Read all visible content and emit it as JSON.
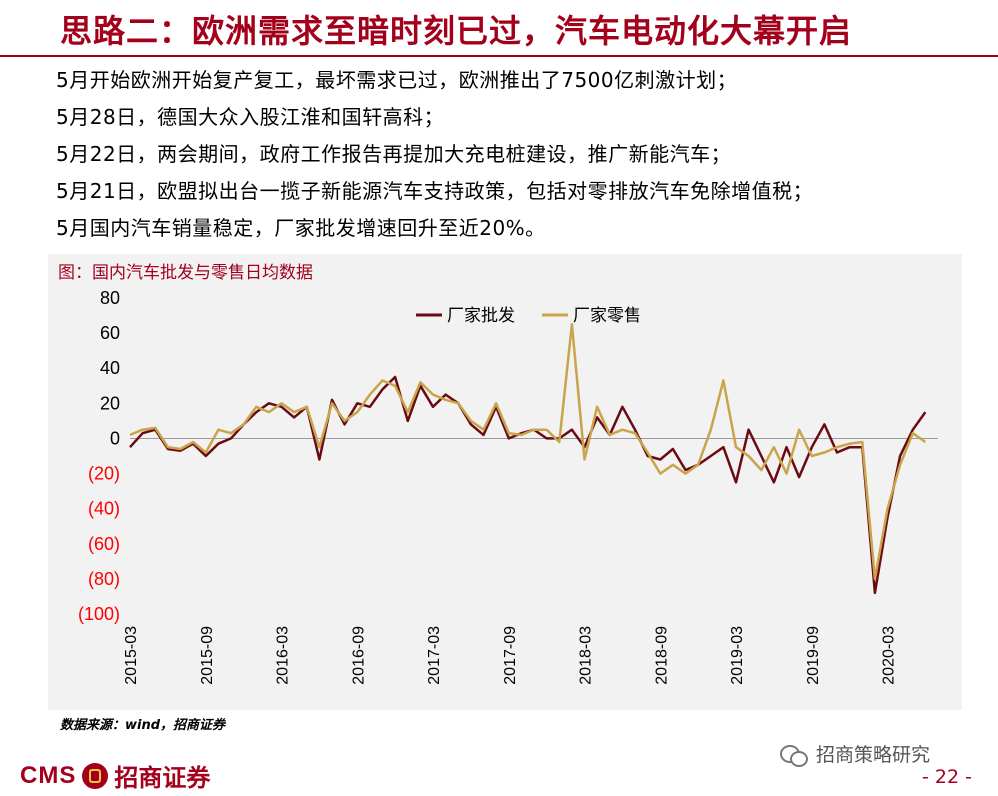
{
  "page": {
    "title": "思路二：欧洲需求至暗时刻已过，汽车电动化大幕开启",
    "bullets": [
      "5月开始欧洲开始复产复工，最坏需求已过，欧洲推出了7500亿刺激计划；",
      "5月28日，德国大众入股江淮和国轩高科；",
      "5月22日，两会期间，政府工作报告再提加大充电桩建设，推广新能汽车；",
      "5月21日，欧盟拟出台一揽子新能源汽车支持政策，包括对零排放汽车免除增值税；",
      "5月国内汽车销量稳定，厂家批发增速回升至近20%。"
    ],
    "source": "数据来源：wind，招商证券",
    "logo_en": "CMS",
    "logo_cn": "招商证券",
    "wechat_name": "招商策略研究",
    "page_number": "- 22 -"
  },
  "colors": {
    "brand_red": "#a3001c",
    "wholesale": "#6b0a12",
    "retail": "#c9a44a",
    "negative_tick": "#ff0000"
  },
  "chart_data": {
    "type": "line",
    "caption": "图：国内汽车批发与零售日均数据",
    "ylim": [
      -100,
      80
    ],
    "yticks": [
      {
        "value": 80,
        "label": "80"
      },
      {
        "value": 60,
        "label": "60"
      },
      {
        "value": 40,
        "label": "40"
      },
      {
        "value": 20,
        "label": "20"
      },
      {
        "value": 0,
        "label": "0"
      },
      {
        "value": -20,
        "label": "(20)"
      },
      {
        "value": -40,
        "label": "(40)"
      },
      {
        "value": -60,
        "label": "(60)"
      },
      {
        "value": -80,
        "label": "(80)"
      },
      {
        "value": -100,
        "label": "(100)"
      }
    ],
    "x_range": [
      "2015-03",
      "2020-07"
    ],
    "xticks": [
      "2015-03",
      "2015-09",
      "2016-03",
      "2016-09",
      "2017-03",
      "2017-09",
      "2018-03",
      "2018-09",
      "2019-03",
      "2019-09",
      "2020-03"
    ],
    "series": [
      {
        "name": "厂家批发",
        "points": [
          [
            "2015-03",
            -5
          ],
          [
            "2015-04",
            3
          ],
          [
            "2015-05",
            5
          ],
          [
            "2015-06",
            -6
          ],
          [
            "2015-07",
            -7
          ],
          [
            "2015-08",
            -3
          ],
          [
            "2015-09",
            -10
          ],
          [
            "2015-10",
            -3
          ],
          [
            "2015-11",
            0
          ],
          [
            "2015-12",
            8
          ],
          [
            "2016-01",
            15
          ],
          [
            "2016-02",
            20
          ],
          [
            "2016-03",
            18
          ],
          [
            "2016-04",
            12
          ],
          [
            "2016-05",
            18
          ],
          [
            "2016-06",
            -12
          ],
          [
            "2016-07",
            22
          ],
          [
            "2016-08",
            8
          ],
          [
            "2016-09",
            20
          ],
          [
            "2016-10",
            18
          ],
          [
            "2016-11",
            28
          ],
          [
            "2016-12",
            35
          ],
          [
            "2017-01",
            10
          ],
          [
            "2017-02",
            30
          ],
          [
            "2017-03",
            18
          ],
          [
            "2017-04",
            25
          ],
          [
            "2017-05",
            20
          ],
          [
            "2017-06",
            8
          ],
          [
            "2017-07",
            2
          ],
          [
            "2017-08",
            18
          ],
          [
            "2017-09",
            0
          ],
          [
            "2017-10",
            3
          ],
          [
            "2017-11",
            5
          ],
          [
            "2017-12",
            0
          ],
          [
            "2018-01",
            0
          ],
          [
            "2018-02",
            5
          ],
          [
            "2018-03",
            -5
          ],
          [
            "2018-04",
            12
          ],
          [
            "2018-05",
            2
          ],
          [
            "2018-06",
            18
          ],
          [
            "2018-07",
            5
          ],
          [
            "2018-08",
            -10
          ],
          [
            "2018-09",
            -12
          ],
          [
            "2018-10",
            -6
          ],
          [
            "2018-11",
            -18
          ],
          [
            "2018-12",
            -15
          ],
          [
            "2019-01",
            -10
          ],
          [
            "2019-02",
            -5
          ],
          [
            "2019-03",
            -25
          ],
          [
            "2019-04",
            5
          ],
          [
            "2019-05",
            -10
          ],
          [
            "2019-06",
            -25
          ],
          [
            "2019-07",
            -5
          ],
          [
            "2019-08",
            -22
          ],
          [
            "2019-09",
            -5
          ],
          [
            "2019-10",
            8
          ],
          [
            "2019-11",
            -8
          ],
          [
            "2019-12",
            -5
          ],
          [
            "2020-01",
            -5
          ],
          [
            "2020-02",
            -88
          ],
          [
            "2020-03",
            -45
          ],
          [
            "2020-04",
            -10
          ],
          [
            "2020-05",
            5
          ],
          [
            "2020-06",
            15
          ]
        ]
      },
      {
        "name": "厂家零售",
        "points": [
          [
            "2015-03",
            2
          ],
          [
            "2015-04",
            5
          ],
          [
            "2015-05",
            6
          ],
          [
            "2015-06",
            -5
          ],
          [
            "2015-07",
            -6
          ],
          [
            "2015-08",
            -2
          ],
          [
            "2015-09",
            -8
          ],
          [
            "2015-10",
            5
          ],
          [
            "2015-11",
            3
          ],
          [
            "2015-12",
            8
          ],
          [
            "2016-01",
            18
          ],
          [
            "2016-02",
            15
          ],
          [
            "2016-03",
            20
          ],
          [
            "2016-04",
            15
          ],
          [
            "2016-05",
            18
          ],
          [
            "2016-06",
            -5
          ],
          [
            "2016-07",
            20
          ],
          [
            "2016-08",
            10
          ],
          [
            "2016-09",
            15
          ],
          [
            "2016-10",
            25
          ],
          [
            "2016-11",
            33
          ],
          [
            "2016-12",
            30
          ],
          [
            "2017-01",
            15
          ],
          [
            "2017-02",
            32
          ],
          [
            "2017-03",
            25
          ],
          [
            "2017-04",
            22
          ],
          [
            "2017-05",
            20
          ],
          [
            "2017-06",
            10
          ],
          [
            "2017-07",
            5
          ],
          [
            "2017-08",
            20
          ],
          [
            "2017-09",
            3
          ],
          [
            "2017-10",
            2
          ],
          [
            "2017-11",
            5
          ],
          [
            "2017-12",
            5
          ],
          [
            "2018-01",
            -2
          ],
          [
            "2018-02",
            65
          ],
          [
            "2018-03",
            -12
          ],
          [
            "2018-04",
            18
          ],
          [
            "2018-05",
            2
          ],
          [
            "2018-06",
            5
          ],
          [
            "2018-07",
            3
          ],
          [
            "2018-08",
            -8
          ],
          [
            "2018-09",
            -20
          ],
          [
            "2018-10",
            -15
          ],
          [
            "2018-11",
            -20
          ],
          [
            "2018-12",
            -15
          ],
          [
            "2019-01",
            5
          ],
          [
            "2019-02",
            33
          ],
          [
            "2019-03",
            -5
          ],
          [
            "2019-04",
            -10
          ],
          [
            "2019-05",
            -18
          ],
          [
            "2019-06",
            -5
          ],
          [
            "2019-07",
            -20
          ],
          [
            "2019-08",
            5
          ],
          [
            "2019-09",
            -10
          ],
          [
            "2019-10",
            -8
          ],
          [
            "2019-11",
            -5
          ],
          [
            "2019-12",
            -3
          ],
          [
            "2020-01",
            -2
          ],
          [
            "2020-02",
            -80
          ],
          [
            "2020-03",
            -40
          ],
          [
            "2020-04",
            -15
          ],
          [
            "2020-05",
            3
          ],
          [
            "2020-06",
            -2
          ]
        ]
      }
    ],
    "legend_position": "top-center",
    "grid": false
  }
}
